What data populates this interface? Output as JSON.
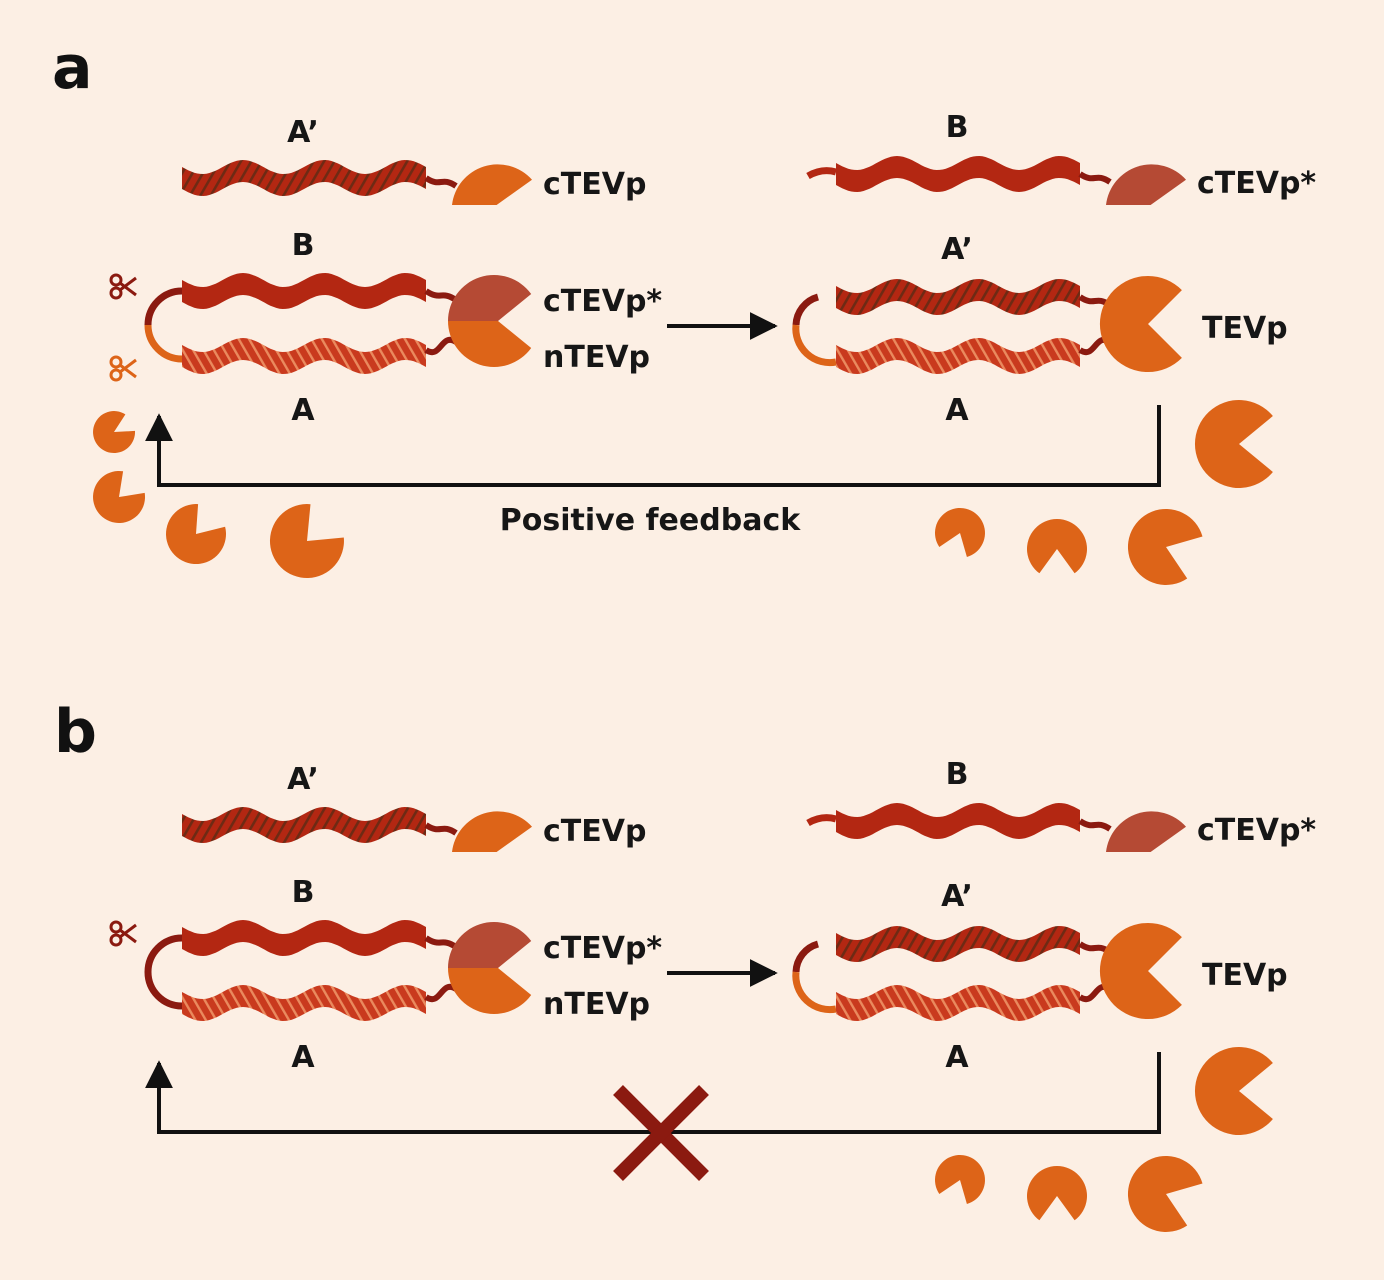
{
  "colors": {
    "background": "#fcefe4",
    "strand_red": "#b32712",
    "strand_dark_stripe": "#6e2a14",
    "strand_light_stripe": "#e98a5e",
    "linker": "#8b1a10",
    "tev_orange": "#dd6418",
    "ctev_star": "#b54a34",
    "scissor_red": "#8b1a10",
    "scissor_orange": "#dd6418",
    "arrow": "#111111",
    "x_mark": "#8b1a10"
  },
  "panels": [
    {
      "letter": "a",
      "labels": {
        "top_left_strand": "A’",
        "top_left_enzyme": "cTEVp",
        "top_right_strand": "B",
        "top_right_enzyme": "cTEVp*",
        "hairpin_upper": "B",
        "hairpin_lower": "A",
        "hairpin_upper_enzyme": "cTEVp*",
        "hairpin_lower_enzyme": "nTEVp",
        "duplex_upper": "A’",
        "duplex_lower": "A",
        "duplex_enzyme": "TEVp",
        "feedback": "Positive feedback"
      },
      "feedback_blocked": false
    },
    {
      "letter": "b",
      "labels": {
        "top_left_strand": "A’",
        "top_left_enzyme": "cTEVp",
        "top_right_strand": "B",
        "top_right_enzyme": "cTEVp*",
        "hairpin_upper": "B",
        "hairpin_lower": "A",
        "hairpin_upper_enzyme": "cTEVp*",
        "hairpin_lower_enzyme": "nTEVp",
        "duplex_upper": "A’",
        "duplex_lower": "A",
        "duplex_enzyme": "TEVp",
        "feedback": ""
      },
      "feedback_blocked": true
    }
  ],
  "icons": {
    "scissors": "scissors-icon",
    "enzyme": "pacman-enzyme-icon",
    "block": "x-mark-icon"
  }
}
